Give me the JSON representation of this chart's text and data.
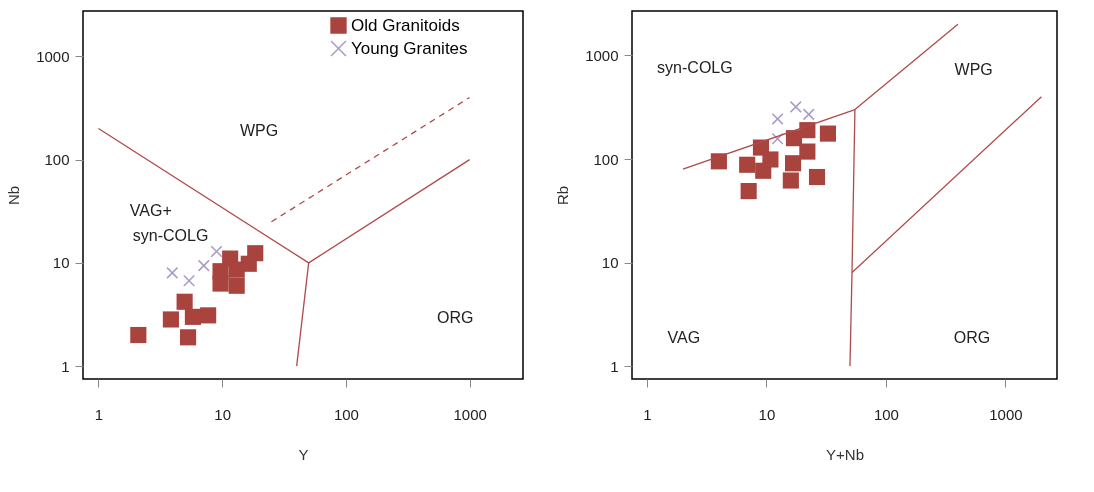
{
  "chart_data": [
    {
      "type": "scatter",
      "xlabel": "Y",
      "ylabel": "Nb",
      "log": "xy",
      "grid": false,
      "legend": "top right",
      "xlim": [
        0.75,
        2700
      ],
      "ylim": [
        0.75,
        2750
      ],
      "xticks": [
        1,
        10,
        100,
        1000
      ],
      "yticks": [
        1,
        10,
        100,
        1000
      ],
      "series": [
        {
          "name": "Old Granitoids",
          "type": "scatter",
          "marker": "square",
          "color": "#a8433d",
          "x": [
            2.1,
            3.85,
            4.97,
            5.8,
            5.3,
            7.7,
            9.7,
            9.7,
            11.6,
            13.1,
            13.1,
            16.4,
            18.5
          ],
          "values": [
            2.0,
            2.83,
            4.2,
            3.0,
            1.9,
            3.1,
            8.3,
            6.3,
            11,
            6.0,
            8.6,
            9.8,
            12.4
          ]
        },
        {
          "name": "Young Granites",
          "type": "scatter",
          "marker": "cross",
          "color": "#a99ac8",
          "x": [
            3.95,
            5.4,
            7.1,
            9.0
          ],
          "values": [
            8.0,
            6.7,
            9.4,
            12.9
          ]
        },
        {
          "type": "line",
          "line_style": "solid",
          "color": "#b04a4a",
          "x": [
            1,
            50,
            1000
          ],
          "values": [
            200,
            10,
            100
          ]
        },
        {
          "type": "line",
          "line_style": "solid",
          "color": "#b04a4a",
          "x": [
            50,
            40
          ],
          "values": [
            10,
            1
          ]
        },
        {
          "type": "line",
          "line_style": "dashed",
          "color": "#b04a4a",
          "x": [
            25,
            1000
          ],
          "values": [
            25,
            400
          ]
        }
      ],
      "annotations": [
        "WPG",
        "VAG+",
        "syn-COLG",
        "ORG"
      ]
    },
    {
      "type": "scatter",
      "xlabel": "Y+Nb",
      "ylabel": "Rb",
      "log": "xy",
      "grid": false,
      "xlim": [
        0.75,
        2700
      ],
      "ylim": [
        0.75,
        2690
      ],
      "xticks": [
        1,
        10,
        100,
        1000
      ],
      "yticks": [
        1,
        10,
        100,
        1000
      ],
      "series": [
        {
          "type": "scatter",
          "marker": "square",
          "color": "#a8433d",
          "x": [
            4.0,
            6.9,
            7.1,
            9.0,
            9.4,
            10.8,
            16,
            16.7,
            17,
            22,
            22,
            26.5,
            32.7
          ],
          "values": [
            95,
            88,
            49,
            129,
            77,
            99,
            62,
            91,
            159,
            190,
            118,
            67,
            176
          ]
        },
        {
          "type": "scatter",
          "marker": "cross",
          "color": "#a99ac8",
          "x": [
            12.4,
            12.4,
            17.6,
            22.6
          ],
          "values": [
            244,
            157,
            319,
            270
          ]
        },
        {
          "type": "line",
          "line_style": "solid",
          "color": "#b04a4a",
          "x": [
            2,
            55,
            400
          ],
          "values": [
            80,
            300,
            2000
          ]
        },
        {
          "type": "line",
          "line_style": "solid",
          "color": "#b04a4a",
          "x": [
            55,
            52,
            50
          ],
          "values": [
            300,
            8,
            1
          ]
        },
        {
          "type": "line",
          "line_style": "solid",
          "color": "#b04a4a",
          "x": [
            52,
            2000
          ],
          "values": [
            8,
            400
          ]
        }
      ],
      "annotations": [
        "syn-COLG",
        "WPG",
        "VAG",
        "ORG"
      ]
    }
  ]
}
